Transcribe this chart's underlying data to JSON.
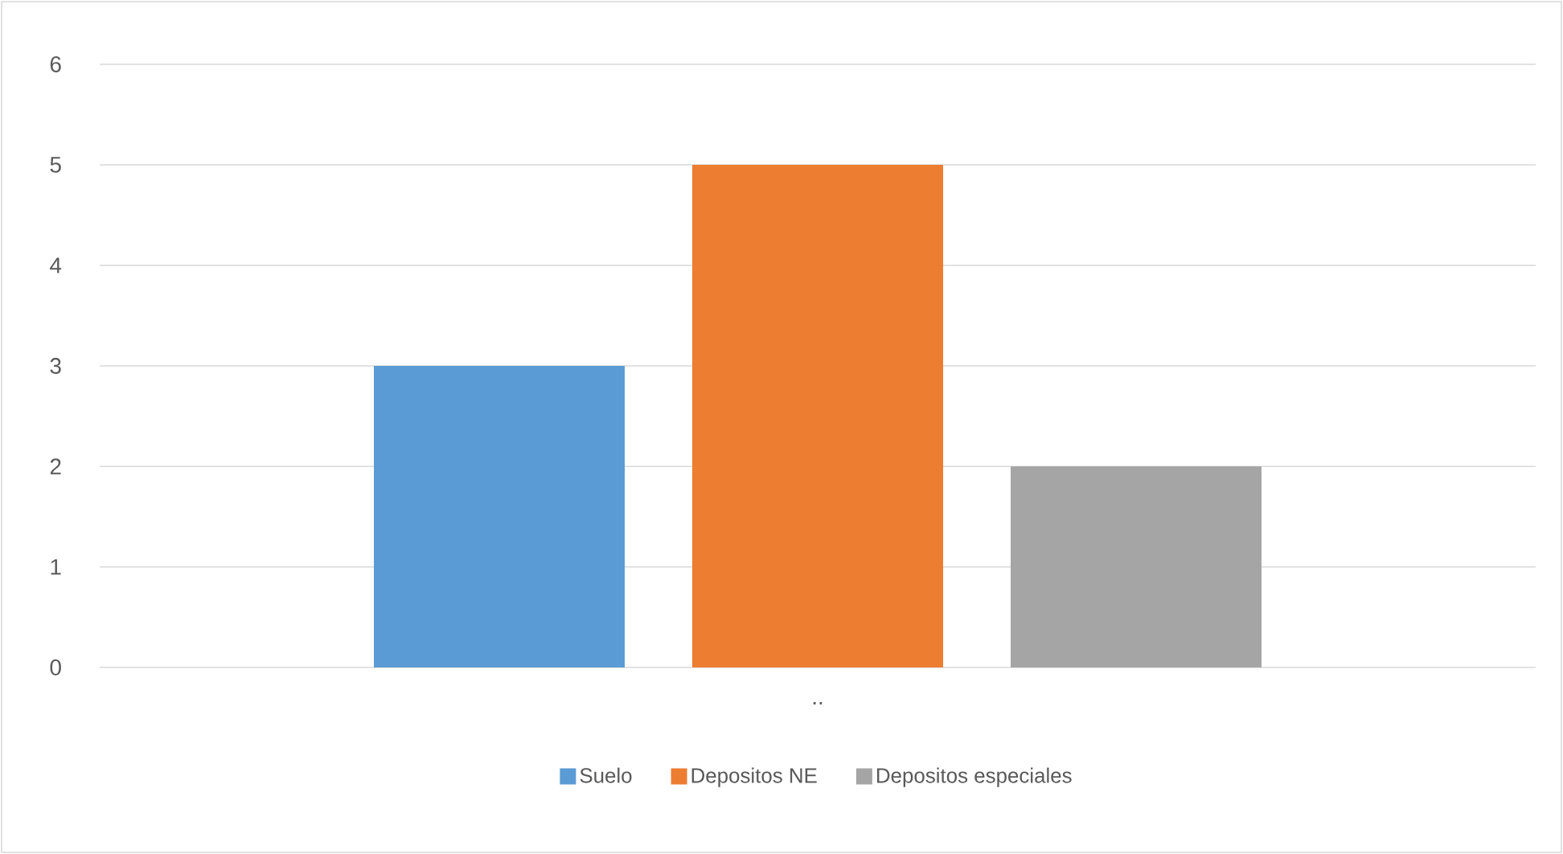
{
  "chart_data": {
    "type": "bar",
    "categories": [
      ".."
    ],
    "series": [
      {
        "name": "Suelo",
        "color": "#5b9bd5",
        "values": [
          3
        ]
      },
      {
        "name": "Depositos NE",
        "color": "#ed7d31",
        "values": [
          5
        ]
      },
      {
        "name": "Depositos especiales",
        "color": "#a5a5a5",
        "values": [
          2
        ]
      }
    ],
    "ylim": [
      0,
      6
    ],
    "yticks": [
      0,
      1,
      2,
      3,
      4,
      5,
      6
    ],
    "grid": "y",
    "legend": "bottom"
  }
}
